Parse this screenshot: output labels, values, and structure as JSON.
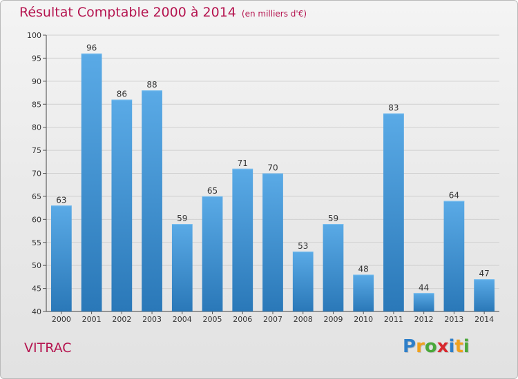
{
  "title": {
    "main": "Résultat Comptable 2000 à 2014",
    "unit": "(en milliers d'€)"
  },
  "commune": "VITRAC",
  "logo": {
    "letters": [
      "P",
      "r",
      "o",
      "x",
      "i",
      "t",
      "i"
    ],
    "colors": [
      "#2e7fc9",
      "#f0a11c",
      "#4aa83a",
      "#d8282e",
      "#2e7fc9",
      "#f0a11c",
      "#4aa83a"
    ]
  },
  "colors": {
    "bar_top": "#5aaae6",
    "bar_bottom": "#2a78b8",
    "title": "#b5144f"
  },
  "chart_data": {
    "type": "bar",
    "title": "Résultat Comptable 2000 à 2014 (en milliers d'€)",
    "xlabel": "",
    "ylabel": "",
    "ylim": [
      40,
      100
    ],
    "yticks": [
      40,
      45,
      50,
      55,
      60,
      65,
      70,
      75,
      80,
      85,
      90,
      95,
      100
    ],
    "grid": true,
    "categories": [
      "2000",
      "2001",
      "2002",
      "2003",
      "2004",
      "2005",
      "2006",
      "2007",
      "2008",
      "2009",
      "2010",
      "2011",
      "2012",
      "2013",
      "2014"
    ],
    "values": [
      63,
      96,
      86,
      88,
      59,
      65,
      71,
      70,
      53,
      59,
      48,
      83,
      44,
      64,
      47
    ]
  }
}
